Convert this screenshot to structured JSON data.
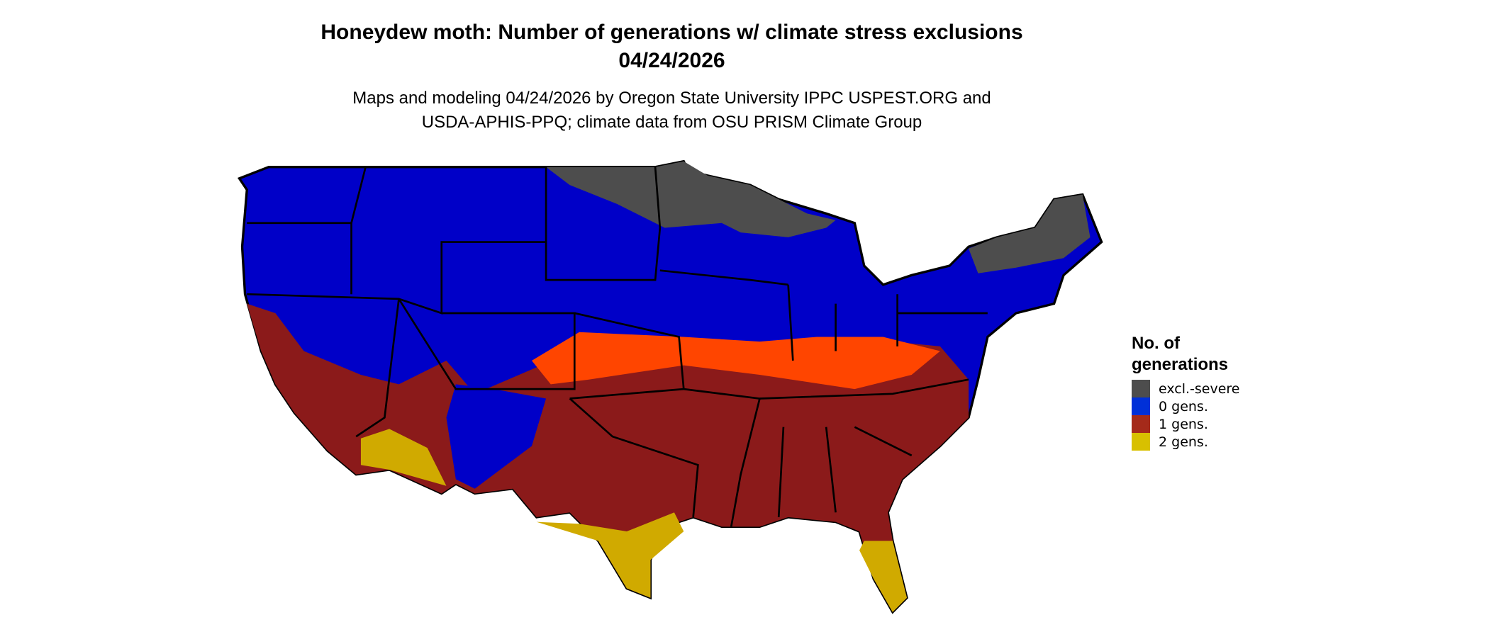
{
  "title": {
    "line1": "Honeydew moth: Number of generations w/ climate stress exclusions",
    "line2": "04/24/2026"
  },
  "subtitle": {
    "line1": "Maps and modeling 04/24/2026 by Oregon State University IPPC USPEST.ORG and",
    "line2": "USDA-APHIS-PPQ; climate data from OSU PRISM Climate Group"
  },
  "legend": {
    "title_line1": "No. of",
    "title_line2": "generations",
    "items": [
      {
        "label": "excl.-severe",
        "color": "#4d4d4d"
      },
      {
        "label": "0 gens.",
        "color": "#0030d8"
      },
      {
        "label": "1 gens.",
        "color": "#a52a1a"
      },
      {
        "label": "2 gens.",
        "color": "#d8c000"
      }
    ]
  },
  "map_colors": {
    "zero": "#0000c8",
    "excl": "#4d4d4d",
    "one": "#8b1a1a",
    "transition": "#ff4500",
    "two": "#d0aa00"
  }
}
